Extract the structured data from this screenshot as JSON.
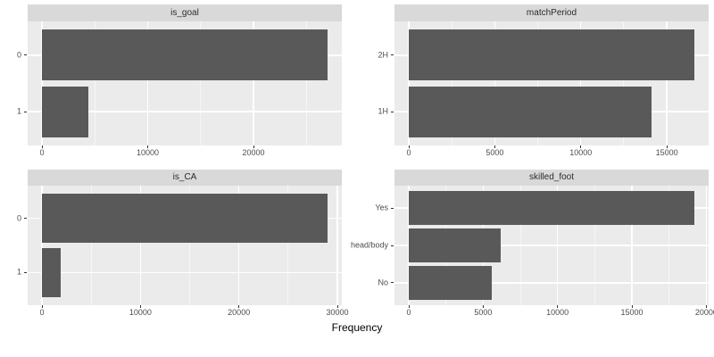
{
  "figure": {
    "xlabel": "Frequency"
  },
  "colors": {
    "bar_fill": "#595959",
    "panel_background": "#EBEBEB",
    "strip_background": "#D9D9D9",
    "gridline": "#FFFFFF",
    "tick_text": "#4D4D4D",
    "strip_text": "#2B2B2B",
    "axis_title_text": "#000000",
    "page_background": "#FFFFFF"
  },
  "chart_data": [
    {
      "type": "bar",
      "orientation": "horizontal",
      "title": "is_goal",
      "categories": [
        "0",
        "1"
      ],
      "values": [
        27000,
        4400
      ],
      "xticks": [
        0,
        10000,
        20000
      ],
      "xlim": [
        -1350,
        28350
      ],
      "grid": true,
      "legend": "none"
    },
    {
      "type": "bar",
      "orientation": "horizontal",
      "title": "matchPeriod",
      "categories": [
        "2H",
        "1H"
      ],
      "values": [
        16600,
        14100
      ],
      "xticks": [
        0,
        5000,
        10000,
        15000
      ],
      "xlim": [
        -830,
        17430
      ],
      "grid": true,
      "legend": "none"
    },
    {
      "type": "bar",
      "orientation": "horizontal",
      "title": "is_CA",
      "categories": [
        "0",
        "1"
      ],
      "values": [
        29000,
        1900
      ],
      "xticks": [
        0,
        10000,
        20000,
        30000
      ],
      "xlim": [
        -1450,
        30450
      ],
      "grid": true,
      "legend": "none"
    },
    {
      "type": "bar",
      "orientation": "horizontal",
      "title": "skilled_foot",
      "categories": [
        "Yes",
        "head/body",
        "No"
      ],
      "values": [
        19200,
        6200,
        5600
      ],
      "xticks": [
        0,
        5000,
        10000,
        15000,
        20000
      ],
      "xlim": [
        -960,
        20160
      ],
      "grid": true,
      "legend": "none"
    }
  ]
}
